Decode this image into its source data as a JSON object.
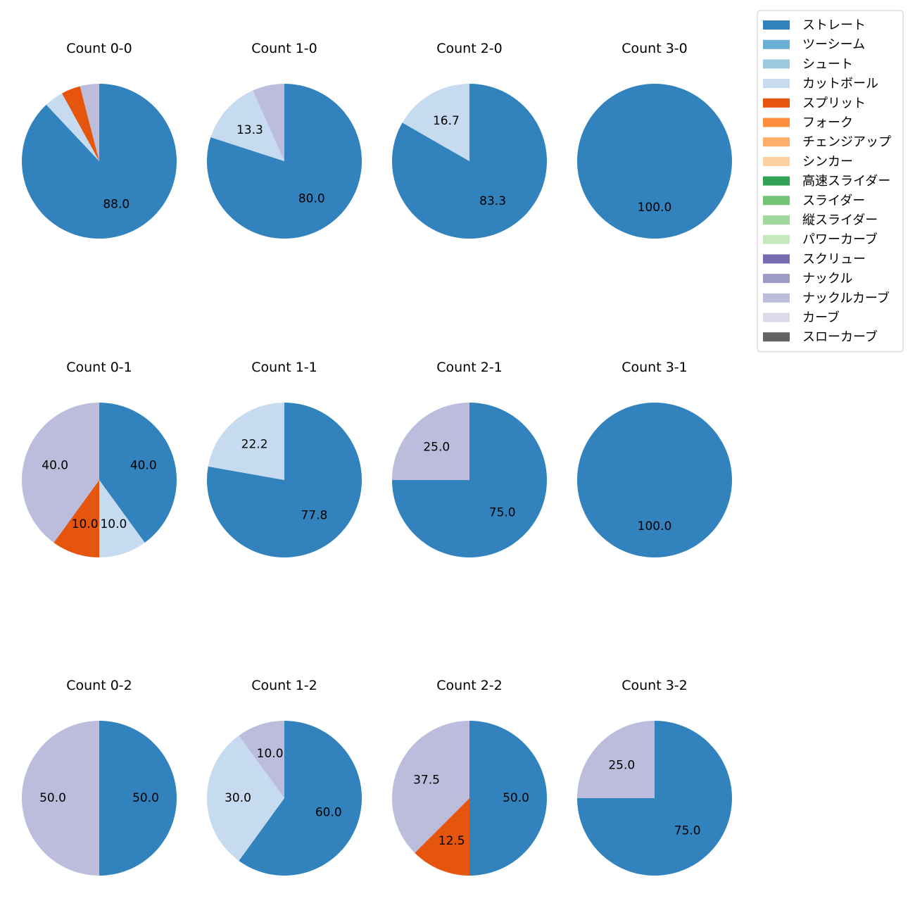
{
  "chart_data": {
    "type": "pie",
    "start_angle": "12 o'clock, clockwise",
    "legend": {
      "placement": "top-right",
      "entries": [
        {
          "name": "ストレート",
          "color": "#3182bd"
        },
        {
          "name": "ツーシーム",
          "color": "#6baed6"
        },
        {
          "name": "シュート",
          "color": "#9ecae1"
        },
        {
          "name": "カットボール",
          "color": "#c6dbef"
        },
        {
          "name": "スプリット",
          "color": "#e6550d"
        },
        {
          "name": "フォーク",
          "color": "#fd8d3c"
        },
        {
          "name": "チェンジアップ",
          "color": "#fdae6b"
        },
        {
          "name": "シンカー",
          "color": "#fdd0a2"
        },
        {
          "name": "高速スライダー",
          "color": "#31a354"
        },
        {
          "name": "スライダー",
          "color": "#74c476"
        },
        {
          "name": "縦スライダー",
          "color": "#a1d99b"
        },
        {
          "name": "パワーカーブ",
          "color": "#c7e9c0"
        },
        {
          "name": "スクリュー",
          "color": "#756bb1"
        },
        {
          "name": "ナックル",
          "color": "#9e9ac8"
        },
        {
          "name": "ナックルカーブ",
          "color": "#bcbddc"
        },
        {
          "name": "カーブ",
          "color": "#dadaeb"
        },
        {
          "name": "スローカーブ",
          "color": "#636363"
        }
      ]
    },
    "panels": [
      {
        "title": "Count 0-0",
        "slices": [
          {
            "pitch": "ストレート",
            "value": 88.0,
            "label": "88.0"
          },
          {
            "pitch": "カットボール",
            "value": 4.0,
            "label": ""
          },
          {
            "pitch": "スプリット",
            "value": 4.0,
            "label": ""
          },
          {
            "pitch": "ナックルカーブ",
            "value": 4.0,
            "label": ""
          }
        ]
      },
      {
        "title": "Count 1-0",
        "slices": [
          {
            "pitch": "ストレート",
            "value": 80.0,
            "label": "80.0"
          },
          {
            "pitch": "カットボール",
            "value": 13.3,
            "label": "13.3"
          },
          {
            "pitch": "ナックルカーブ",
            "value": 6.7,
            "label": ""
          }
        ]
      },
      {
        "title": "Count 2-0",
        "slices": [
          {
            "pitch": "ストレート",
            "value": 83.3,
            "label": "83.3"
          },
          {
            "pitch": "カットボール",
            "value": 16.7,
            "label": "16.7"
          }
        ]
      },
      {
        "title": "Count 3-0",
        "slices": [
          {
            "pitch": "ストレート",
            "value": 100.0,
            "label": "100.0"
          }
        ]
      },
      {
        "title": "Count 0-1",
        "slices": [
          {
            "pitch": "ストレート",
            "value": 40.0,
            "label": "40.0"
          },
          {
            "pitch": "カットボール",
            "value": 10.0,
            "label": "10.0"
          },
          {
            "pitch": "スプリット",
            "value": 10.0,
            "label": "10.0"
          },
          {
            "pitch": "ナックルカーブ",
            "value": 40.0,
            "label": "40.0"
          }
        ]
      },
      {
        "title": "Count 1-1",
        "slices": [
          {
            "pitch": "ストレート",
            "value": 77.8,
            "label": "77.8"
          },
          {
            "pitch": "カットボール",
            "value": 22.2,
            "label": "22.2"
          }
        ]
      },
      {
        "title": "Count 2-1",
        "slices": [
          {
            "pitch": "ストレート",
            "value": 75.0,
            "label": "75.0"
          },
          {
            "pitch": "ナックルカーブ",
            "value": 25.0,
            "label": "25.0"
          }
        ]
      },
      {
        "title": "Count 3-1",
        "slices": [
          {
            "pitch": "ストレート",
            "value": 100.0,
            "label": "100.0"
          }
        ]
      },
      {
        "title": "Count 0-2",
        "slices": [
          {
            "pitch": "ストレート",
            "value": 50.0,
            "label": "50.0"
          },
          {
            "pitch": "ナックルカーブ",
            "value": 50.0,
            "label": "50.0"
          }
        ]
      },
      {
        "title": "Count 1-2",
        "slices": [
          {
            "pitch": "ストレート",
            "value": 60.0,
            "label": "60.0"
          },
          {
            "pitch": "カットボール",
            "value": 30.0,
            "label": "30.0"
          },
          {
            "pitch": "ナックルカーブ",
            "value": 10.0,
            "label": "10.0"
          }
        ]
      },
      {
        "title": "Count 2-2",
        "slices": [
          {
            "pitch": "ストレート",
            "value": 50.0,
            "label": "50.0"
          },
          {
            "pitch": "スプリット",
            "value": 12.5,
            "label": "12.5"
          },
          {
            "pitch": "ナックルカーブ",
            "value": 37.5,
            "label": "37.5"
          }
        ]
      },
      {
        "title": "Count 3-2",
        "slices": [
          {
            "pitch": "ストレート",
            "value": 75.0,
            "label": "75.0"
          },
          {
            "pitch": "ナックルカーブ",
            "value": 25.0,
            "label": "25.0"
          }
        ]
      }
    ]
  }
}
